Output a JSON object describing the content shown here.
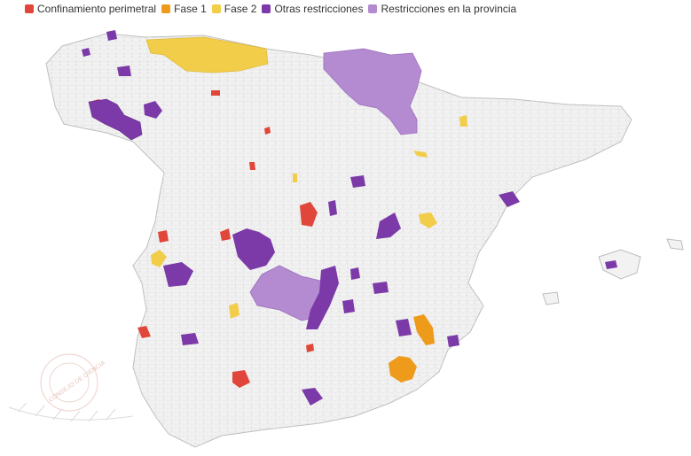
{
  "legend": {
    "items": [
      {
        "label": "Confinamiento perimetral",
        "color": "#e0473a"
      },
      {
        "label": "Fase 1",
        "color": "#ee9a1a"
      },
      {
        "label": "Fase 2",
        "color": "#f2cd4a"
      },
      {
        "label": "Otras restricciones",
        "color": "#7c3aa8"
      },
      {
        "label": "Restricciones en la provincia",
        "color": "#b48ad0"
      }
    ]
  },
  "map": {
    "region": "Spain",
    "base_color": "#f2f2f2",
    "border_color": "#cfcfcf"
  },
  "watermark": {
    "text": "CONSEJO DE CIENCIA"
  }
}
